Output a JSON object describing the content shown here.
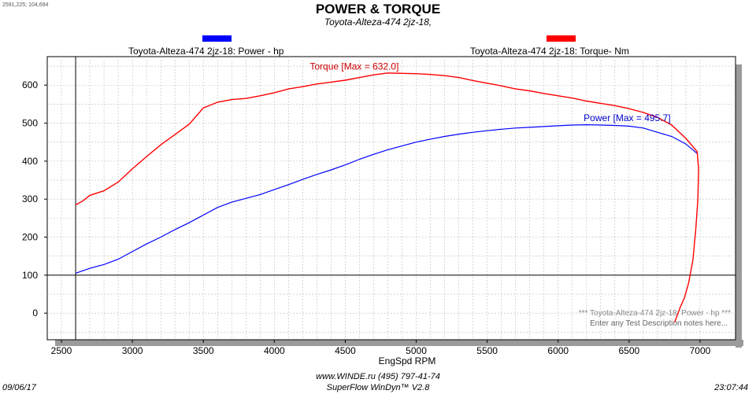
{
  "header": {
    "coords": "2591,225; 104,694",
    "title": "POWER & TORQUE",
    "subtitle": "Toyota-Alteza-474 2jz-18,"
  },
  "legend": {
    "power": {
      "label": "Toyota-Alteza-474 2jz-18: Power -  hp",
      "color": "#0000ff"
    },
    "torque": {
      "label": "Toyota-Alteza-474 2jz-18: Torque-  Nm",
      "color": "#ff0000"
    }
  },
  "footer": {
    "date": "09/06/17",
    "contact": "www.WINDE.ru    (495)  797-41-74",
    "software": "SuperFlow WinDyn™ V2.8",
    "time": "23:07:44"
  },
  "chart_data": {
    "type": "line",
    "xlabel": "EngSpd  RPM",
    "ylabel": "",
    "xlim": [
      2400,
      7250
    ],
    "ylim": [
      -70,
      675
    ],
    "x_ticks": [
      2500,
      3000,
      3500,
      4000,
      4500,
      5000,
      5500,
      6000,
      6500,
      7000
    ],
    "y_ticks": [
      0,
      100,
      200,
      300,
      400,
      500,
      600
    ],
    "grid": true,
    "reference_lines": {
      "x": 2600,
      "y": 100
    },
    "annotations": {
      "torque_max": "Torque [Max = 632.0]",
      "power_max": "Power  [Max = 495.7]",
      "notes_line1": "*** Toyota-Alteza-474 2jz-18: Power -  hp  ***",
      "notes_line2": "Enter any Test Description notes here..."
    },
    "series": [
      {
        "name": "Toyota-Alteza-474 2jz-18: Power -  hp",
        "color": "#0000ff",
        "points": [
          [
            2600,
            105
          ],
          [
            2700,
            118
          ],
          [
            2800,
            128
          ],
          [
            2900,
            142
          ],
          [
            3000,
            162
          ],
          [
            3100,
            182
          ],
          [
            3200,
            200
          ],
          [
            3300,
            220
          ],
          [
            3400,
            238
          ],
          [
            3500,
            258
          ],
          [
            3600,
            278
          ],
          [
            3700,
            292
          ],
          [
            3800,
            302
          ],
          [
            3900,
            312
          ],
          [
            4000,
            325
          ],
          [
            4100,
            338
          ],
          [
            4200,
            352
          ],
          [
            4300,
            365
          ],
          [
            4400,
            377
          ],
          [
            4500,
            390
          ],
          [
            4600,
            405
          ],
          [
            4700,
            418
          ],
          [
            4800,
            430
          ],
          [
            4900,
            440
          ],
          [
            5000,
            450
          ],
          [
            5100,
            458
          ],
          [
            5200,
            465
          ],
          [
            5300,
            471
          ],
          [
            5400,
            476
          ],
          [
            5500,
            480
          ],
          [
            5600,
            484
          ],
          [
            5700,
            487
          ],
          [
            5800,
            489
          ],
          [
            5900,
            491
          ],
          [
            6000,
            493
          ],
          [
            6100,
            495
          ],
          [
            6200,
            495.7
          ],
          [
            6300,
            495
          ],
          [
            6400,
            494
          ],
          [
            6500,
            492
          ],
          [
            6600,
            487
          ],
          [
            6700,
            476
          ],
          [
            6800,
            465
          ],
          [
            6900,
            445
          ],
          [
            6980,
            420
          ]
        ]
      },
      {
        "name": "Toyota-Alteza-474 2jz-18: Torque-  Nm",
        "color": "#ff0000",
        "points": [
          [
            2600,
            285
          ],
          [
            2650,
            295
          ],
          [
            2700,
            310
          ],
          [
            2800,
            322
          ],
          [
            2900,
            345
          ],
          [
            3000,
            380
          ],
          [
            3100,
            412
          ],
          [
            3200,
            443
          ],
          [
            3300,
            470
          ],
          [
            3400,
            497
          ],
          [
            3500,
            540
          ],
          [
            3600,
            555
          ],
          [
            3700,
            562
          ],
          [
            3800,
            565
          ],
          [
            3900,
            572
          ],
          [
            4000,
            580
          ],
          [
            4100,
            590
          ],
          [
            4200,
            596
          ],
          [
            4300,
            603
          ],
          [
            4400,
            608
          ],
          [
            4500,
            613
          ],
          [
            4600,
            620
          ],
          [
            4700,
            627
          ],
          [
            4800,
            632
          ],
          [
            4900,
            631
          ],
          [
            5000,
            630
          ],
          [
            5100,
            628
          ],
          [
            5200,
            625
          ],
          [
            5300,
            620
          ],
          [
            5400,
            612
          ],
          [
            5500,
            605
          ],
          [
            5600,
            598
          ],
          [
            5700,
            590
          ],
          [
            5800,
            585
          ],
          [
            5900,
            578
          ],
          [
            6000,
            572
          ],
          [
            6100,
            566
          ],
          [
            6200,
            558
          ],
          [
            6300,
            552
          ],
          [
            6400,
            546
          ],
          [
            6500,
            538
          ],
          [
            6600,
            528
          ],
          [
            6700,
            515
          ],
          [
            6800,
            495
          ],
          [
            6900,
            460
          ],
          [
            6980,
            425
          ],
          [
            6990,
            380
          ],
          [
            6985,
            300
          ],
          [
            6970,
            220
          ],
          [
            6950,
            140
          ],
          [
            6920,
            80
          ],
          [
            6890,
            40
          ],
          [
            6860,
            15
          ],
          [
            6840,
            -5
          ],
          [
            6820,
            -25
          ]
        ]
      }
    ]
  }
}
